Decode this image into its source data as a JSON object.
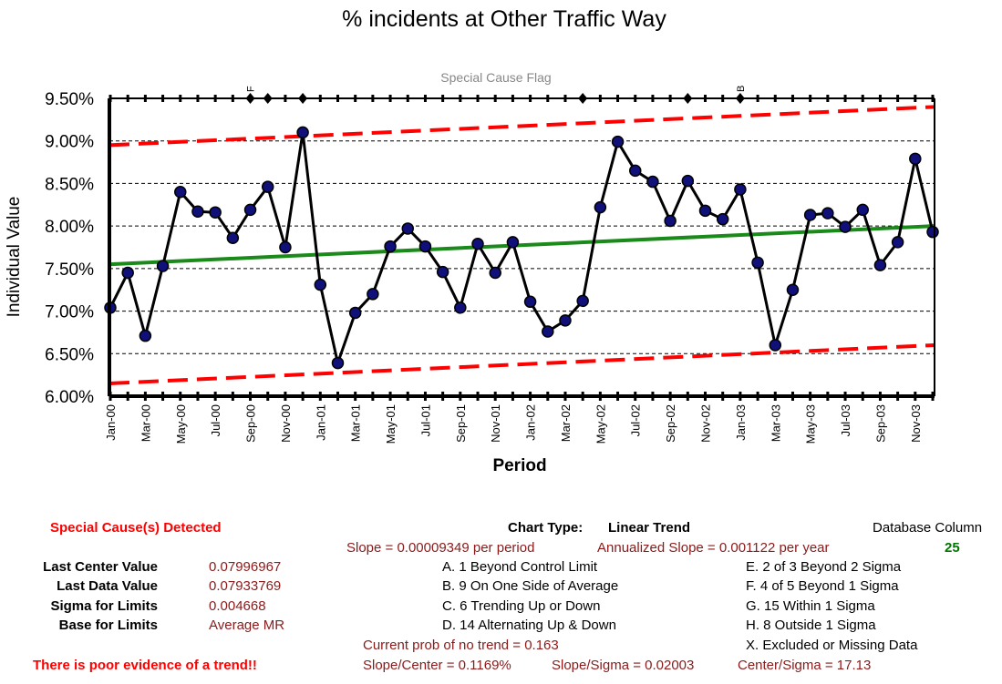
{
  "chart_data": {
    "type": "line",
    "title": "% incidents at Other Traffic Way",
    "xlabel": "Period",
    "ylabel": "Individual Value",
    "flag_title": "Special Cause Flag",
    "ylim": [
      0.06,
      0.095
    ],
    "y_ticks": [
      "9.50%",
      "9.00%",
      "8.50%",
      "8.00%",
      "7.50%",
      "7.00%",
      "6.50%",
      "6.00%"
    ],
    "y_tick_values": [
      0.095,
      0.09,
      0.085,
      0.08,
      0.075,
      0.07,
      0.065,
      0.06
    ],
    "x": [
      "Jan-00",
      "Feb-00",
      "Mar-00",
      "Apr-00",
      "May-00",
      "Jun-00",
      "Jul-00",
      "Aug-00",
      "Sep-00",
      "Oct-00",
      "Nov-00",
      "Dec-00",
      "Jan-01",
      "Feb-01",
      "Mar-01",
      "Apr-01",
      "May-01",
      "Jun-01",
      "Jul-01",
      "Aug-01",
      "Sep-01",
      "Oct-01",
      "Nov-01",
      "Dec-01",
      "Jan-02",
      "Feb-02",
      "Mar-02",
      "Apr-02",
      "May-02",
      "Jun-02",
      "Jul-02",
      "Aug-02",
      "Sep-02",
      "Oct-02",
      "Nov-02",
      "Dec-02",
      "Jan-03",
      "Feb-03",
      "Mar-03",
      "Apr-03",
      "May-03",
      "Jun-03",
      "Jul-03",
      "Aug-03",
      "Sep-03",
      "Oct-03",
      "Nov-03",
      "Dec-03"
    ],
    "x_tick_labels": [
      "Jan-00",
      "Mar-00",
      "May-00",
      "Jul-00",
      "Sep-00",
      "Nov-00",
      "Jan-01",
      "Mar-01",
      "May-01",
      "Jul-01",
      "Sep-01",
      "Nov-01",
      "Jan-02",
      "Mar-02",
      "May-02",
      "Jul-02",
      "Sep-02",
      "Nov-02",
      "Jan-03",
      "Mar-03",
      "May-03",
      "Jul-03",
      "Sep-03",
      "Nov-03"
    ],
    "series": [
      {
        "values": [
          0.0704,
          0.0745,
          0.0671,
          0.0753,
          0.084,
          0.0817,
          0.0816,
          0.0786,
          0.0819,
          0.0846,
          0.0775,
          0.091,
          0.0731,
          0.0639,
          0.0698,
          0.072,
          0.0776,
          0.0797,
          0.0776,
          0.0746,
          0.0704,
          0.0779,
          0.0745,
          0.0781,
          0.0711,
          0.0676,
          0.0689,
          0.0712,
          0.0822,
          0.0899,
          0.0865,
          0.0852,
          0.0806,
          0.0853,
          0.0818,
          0.0808,
          0.0843,
          0.0757,
          0.066,
          0.0725,
          0.0813,
          0.0815,
          0.0799,
          0.0819,
          0.0754,
          0.0781,
          0.0879,
          0.0793
        ]
      },
      {
        "name": "Center Line",
        "values_start": 0.0755,
        "values_end": 0.08
      },
      {
        "name": "Upper Control Limit",
        "values_start": 0.0895,
        "values_end": 0.094
      },
      {
        "name": "Lower Control Limit",
        "values_start": 0.0615,
        "values_end": 0.066
      }
    ],
    "flag_markers": [
      "Sep-00",
      "Oct-00",
      "Dec-00",
      "Apr-02",
      "Oct-02",
      "Jan-03"
    ],
    "flag_letters": [
      {
        "period": "Sep-00",
        "letter": "F"
      },
      {
        "period": "Jan-03",
        "letter": "B"
      }
    ],
    "colors": {
      "data": "#000000",
      "marker": "#10107a",
      "center": "#1a8a1a",
      "limits": "#ff0000"
    },
    "grid": true
  },
  "stats": {
    "special_cause_detected": "Special Cause(s) Detected",
    "poor_evidence": "There is poor evidence of a trend!!",
    "chart_type_label": "Chart Type:",
    "chart_type_value": "Linear Trend",
    "database_column_label": "Database Column",
    "database_column_value": "25",
    "slope": "Slope = 0.00009349 per period",
    "annualized_slope": "Annualized Slope = 0.001122 per year",
    "last_center_label": "Last Center Value",
    "last_center_value": "0.07996967",
    "last_data_label": "Last Data Value",
    "last_data_value": "0.07933769",
    "sigma_label": "Sigma for Limits",
    "sigma_value": "0.004668",
    "base_label": "Base for Limits",
    "base_value": "Average MR",
    "rules_left": [
      "A.  1 Beyond Control Limit",
      "B.  9 On One Side of Average",
      "C.  6 Trending Up or Down",
      "D.  14 Alternating  Up & Down"
    ],
    "rules_right": [
      "E.  2 of 3 Beyond 2 Sigma",
      "F.  4 of 5 Beyond 1 Sigma",
      "G.  15 Within 1 Sigma",
      "H.  8 Outside 1 Sigma",
      "X.  Excluded or Missing Data"
    ],
    "prob_no_trend": "Current prob of no trend = 0.163",
    "slope_center": "Slope/Center = 0.1169%",
    "slope_sigma": "Slope/Sigma = 0.02003",
    "center_sigma": "Center/Sigma = 17.13"
  }
}
